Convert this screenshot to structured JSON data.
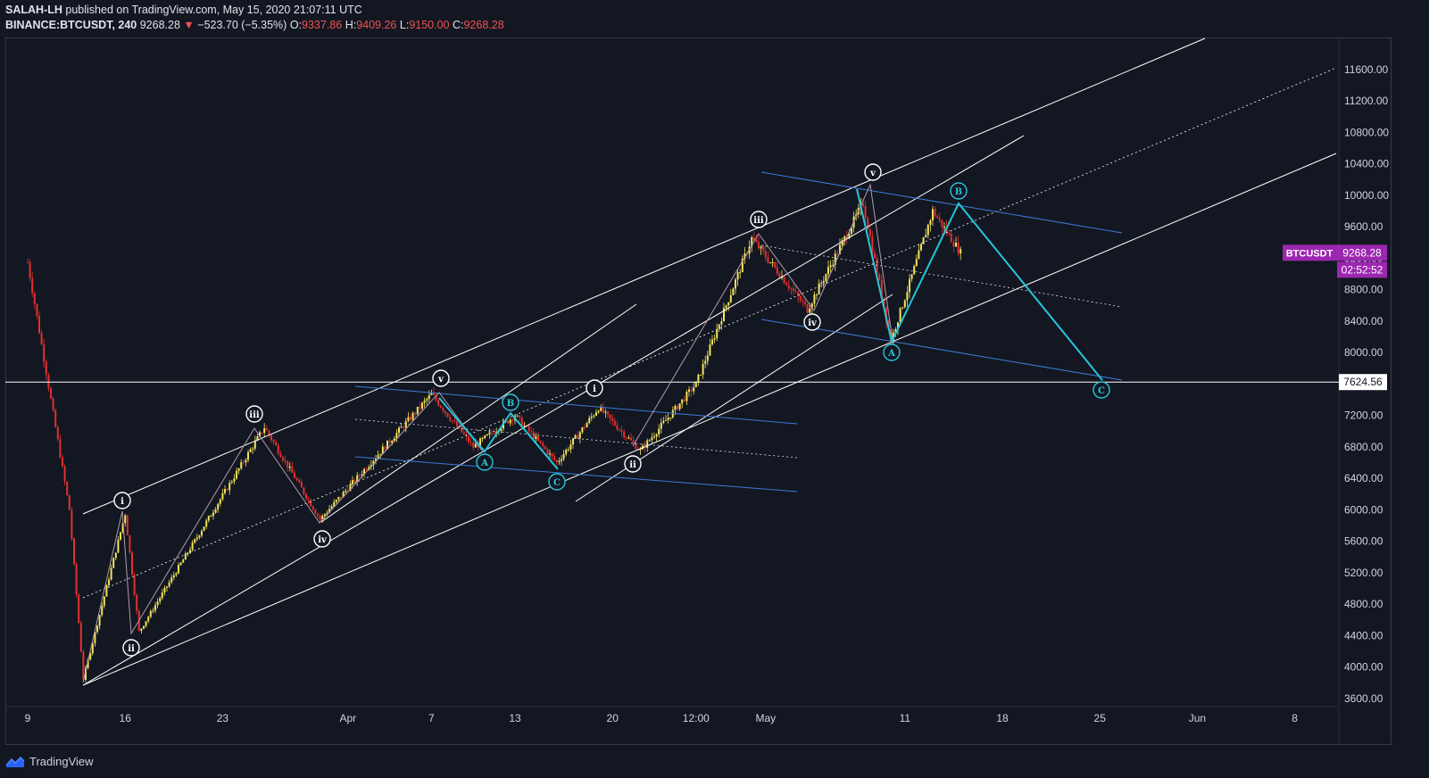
{
  "header": {
    "author": "SALAH-LH",
    "published_text": "published on TradingView.com, May 15, 2020 21:07:11 UTC",
    "symbol": "BINANCE:BTCUSDT, 240",
    "last": "9268.28",
    "change_arrow": "▼",
    "change": "−523.70 (−5.35%)",
    "o_label": "O:",
    "o_value": "9337.86",
    "h_label": "H:",
    "h_value": "9409.26",
    "l_label": "L:",
    "l_value": "9150.00",
    "c_label": "C:",
    "c_value": "9268.28"
  },
  "price_axis": {
    "ticks": [
      "11600.00",
      "11200.00",
      "10800.00",
      "10400.00",
      "10000.00",
      "9600.00",
      "9200.00",
      "8800.00",
      "8400.00",
      "8000.00",
      "7600.00",
      "7200.00",
      "6800.00",
      "6400.00",
      "6000.00",
      "5600.00",
      "5200.00",
      "4800.00",
      "4400.00",
      "4000.00",
      "3600.00"
    ],
    "hline_label": "7624.56",
    "badge_symbol": "BTCUSDT",
    "badge_price": "9268.28",
    "badge_countdown": "02:52:52"
  },
  "time_axis": {
    "ticks": [
      "9",
      "16",
      "23",
      "Apr",
      "7",
      "13",
      "20",
      "12:00",
      "May",
      "11",
      "18",
      "25",
      "Jun",
      "8"
    ]
  },
  "waves": {
    "primary": [
      "i",
      "ii",
      "iii",
      "iv",
      "v",
      "i",
      "ii",
      "iii",
      "iv",
      "v"
    ],
    "correction": [
      "A",
      "B",
      "C",
      "A",
      "B",
      "C"
    ]
  },
  "footer": {
    "brand": "TradingView"
  },
  "colors": {
    "background": "#131722",
    "bull": "#f2e35a",
    "bear": "#e0312f",
    "channel": "#ffffff",
    "correction_channel": "#3e7bd6",
    "wave_path": "#26c6da",
    "badge": "#9c27b0"
  },
  "chart_data": {
    "type": "candlestick",
    "symbol": "BTCUSDT",
    "interval": "240",
    "ylim": [
      3600,
      11800
    ],
    "hline": 7624.56,
    "last_price": 9268.28,
    "path_points": [
      {
        "x": "Mar 9",
        "y": 9150
      },
      {
        "x": "Mar 12",
        "y": 6000
      },
      {
        "x": "Mar 13",
        "y": 3850
      },
      {
        "x": "Mar 16",
        "y": 5950
      },
      {
        "x": "Mar 17",
        "y": 4450
      },
      {
        "x": "Mar 26",
        "y": 7050
      },
      {
        "x": "Mar 30",
        "y": 5880
      },
      {
        "x": "Apr 7",
        "y": 7470
      },
      {
        "x": "Apr 10",
        "y": 6800
      },
      {
        "x": "Apr 13",
        "y": 7200
      },
      {
        "x": "Apr 16",
        "y": 6600
      },
      {
        "x": "Apr 19",
        "y": 7300
      },
      {
        "x": "Apr 22",
        "y": 6750
      },
      {
        "x": "Apr 26",
        "y": 7600
      },
      {
        "x": "Apr 30",
        "y": 9450
      },
      {
        "x": "May 4",
        "y": 8550
      },
      {
        "x": "May 8",
        "y": 9900
      },
      {
        "x": "May 10",
        "y": 8150
      },
      {
        "x": "May 13",
        "y": 9800
      },
      {
        "x": "May 15",
        "y": 9268
      }
    ],
    "projection": [
      {
        "x": "May 13",
        "y": 9850
      },
      {
        "x": "May 25",
        "y": 7624
      }
    ]
  }
}
